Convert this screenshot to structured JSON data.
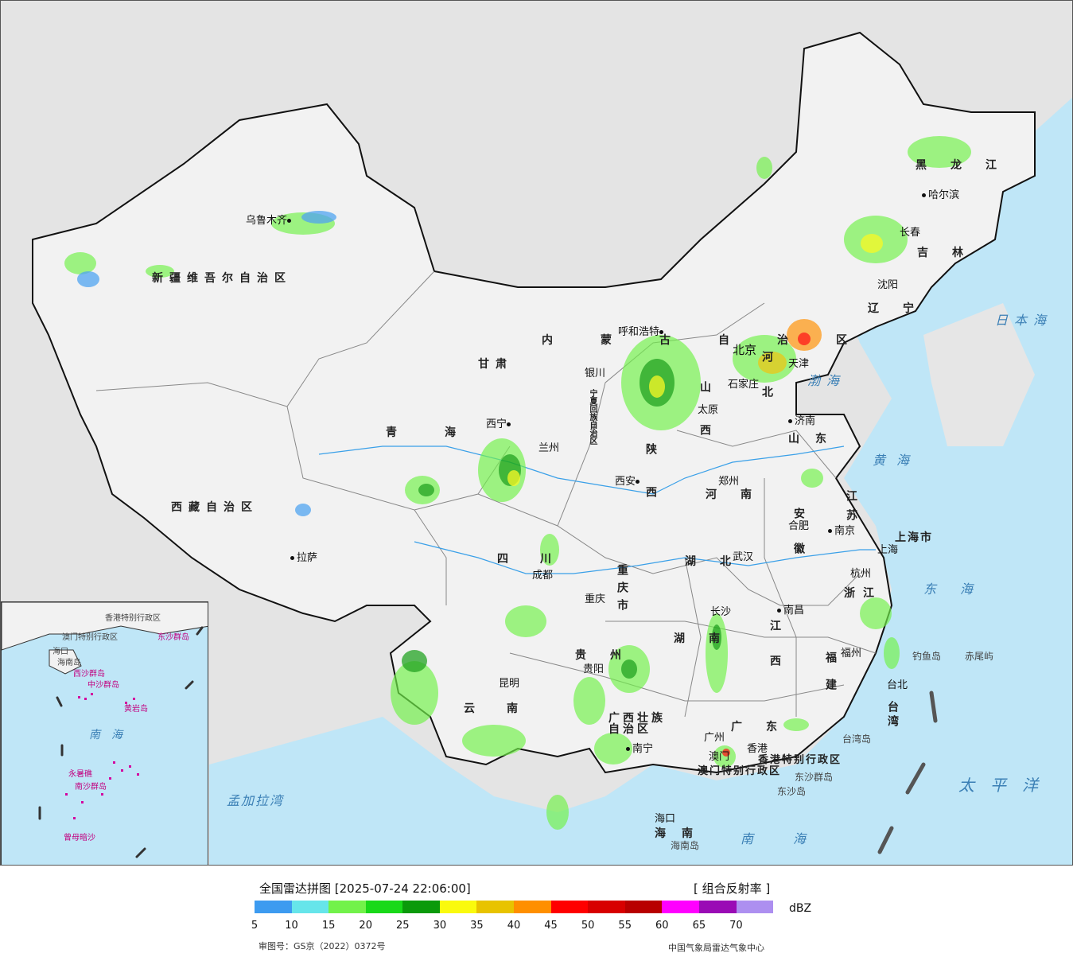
{
  "legend": {
    "title": "全国雷达拼图 [2025-07-24 22:06:00]",
    "product": "[ 组合反射率 ]",
    "unit": "dBZ",
    "ticks": [
      "5",
      "10",
      "15",
      "20",
      "25",
      "30",
      "35",
      "40",
      "45",
      "50",
      "55",
      "60",
      "65",
      "70"
    ],
    "colors": [
      "#3d9bf0",
      "#66e5ea",
      "#72f24a",
      "#19d919",
      "#0b9a0b",
      "#fafa0d",
      "#e8c300",
      "#ff8f00",
      "#ff0000",
      "#d80000",
      "#b80000",
      "#ff00ff",
      "#9a0bb5",
      "#ad8ff0"
    ],
    "approval": "审图号：GS京（2022）0372号",
    "agency": "中国气象局雷达气象中心"
  },
  "provinces": [
    "新疆维吾尔自治区",
    "西藏自治区",
    "青海",
    "甘肃",
    "内蒙古自治区",
    "黑龙江",
    "吉林",
    "辽宁",
    "河北",
    "山西",
    "陕西",
    "四川",
    "重庆市",
    "湖北",
    "湖南",
    "河南",
    "山东",
    "江苏",
    "安徽",
    "浙江",
    "江西",
    "福建",
    "广东",
    "广西壮族自治区",
    "云南",
    "贵州",
    "海南",
    "台湾",
    "上海市",
    "宁夏回族自治区",
    "香港特别行政区",
    "澳门特别行政区"
  ],
  "cities": [
    "乌鲁木齐",
    "拉萨",
    "西宁",
    "兰州",
    "银川",
    "呼和浩特",
    "哈尔滨",
    "长春",
    "沈阳",
    "北京",
    "天津",
    "石家庄",
    "太原",
    "西安",
    "郑州",
    "济南",
    "南京",
    "合肥",
    "上海",
    "杭州",
    "武汉",
    "成都",
    "重庆",
    "长沙",
    "南昌",
    "福州",
    "台北",
    "贵阳",
    "昆明",
    "南宁",
    "广州",
    "香港",
    "澳门",
    "海口"
  ],
  "seas": [
    "日本海",
    "渤海",
    "黄海",
    "东海",
    "太平洋",
    "南海",
    "孟加拉湾"
  ],
  "islands": [
    "钓鱼岛",
    "赤尾屿",
    "台湾岛",
    "东沙群岛",
    "东沙岛",
    "海南岛"
  ],
  "inset": {
    "sea": "南海",
    "labels": [
      "香港特别行政区",
      "澳门特别行政区",
      "东沙群岛",
      "西沙群岛",
      "中沙群岛",
      "南沙群岛",
      "黄岩岛",
      "永暑礁",
      "曾母暗沙",
      "海口",
      "海南岛"
    ]
  }
}
